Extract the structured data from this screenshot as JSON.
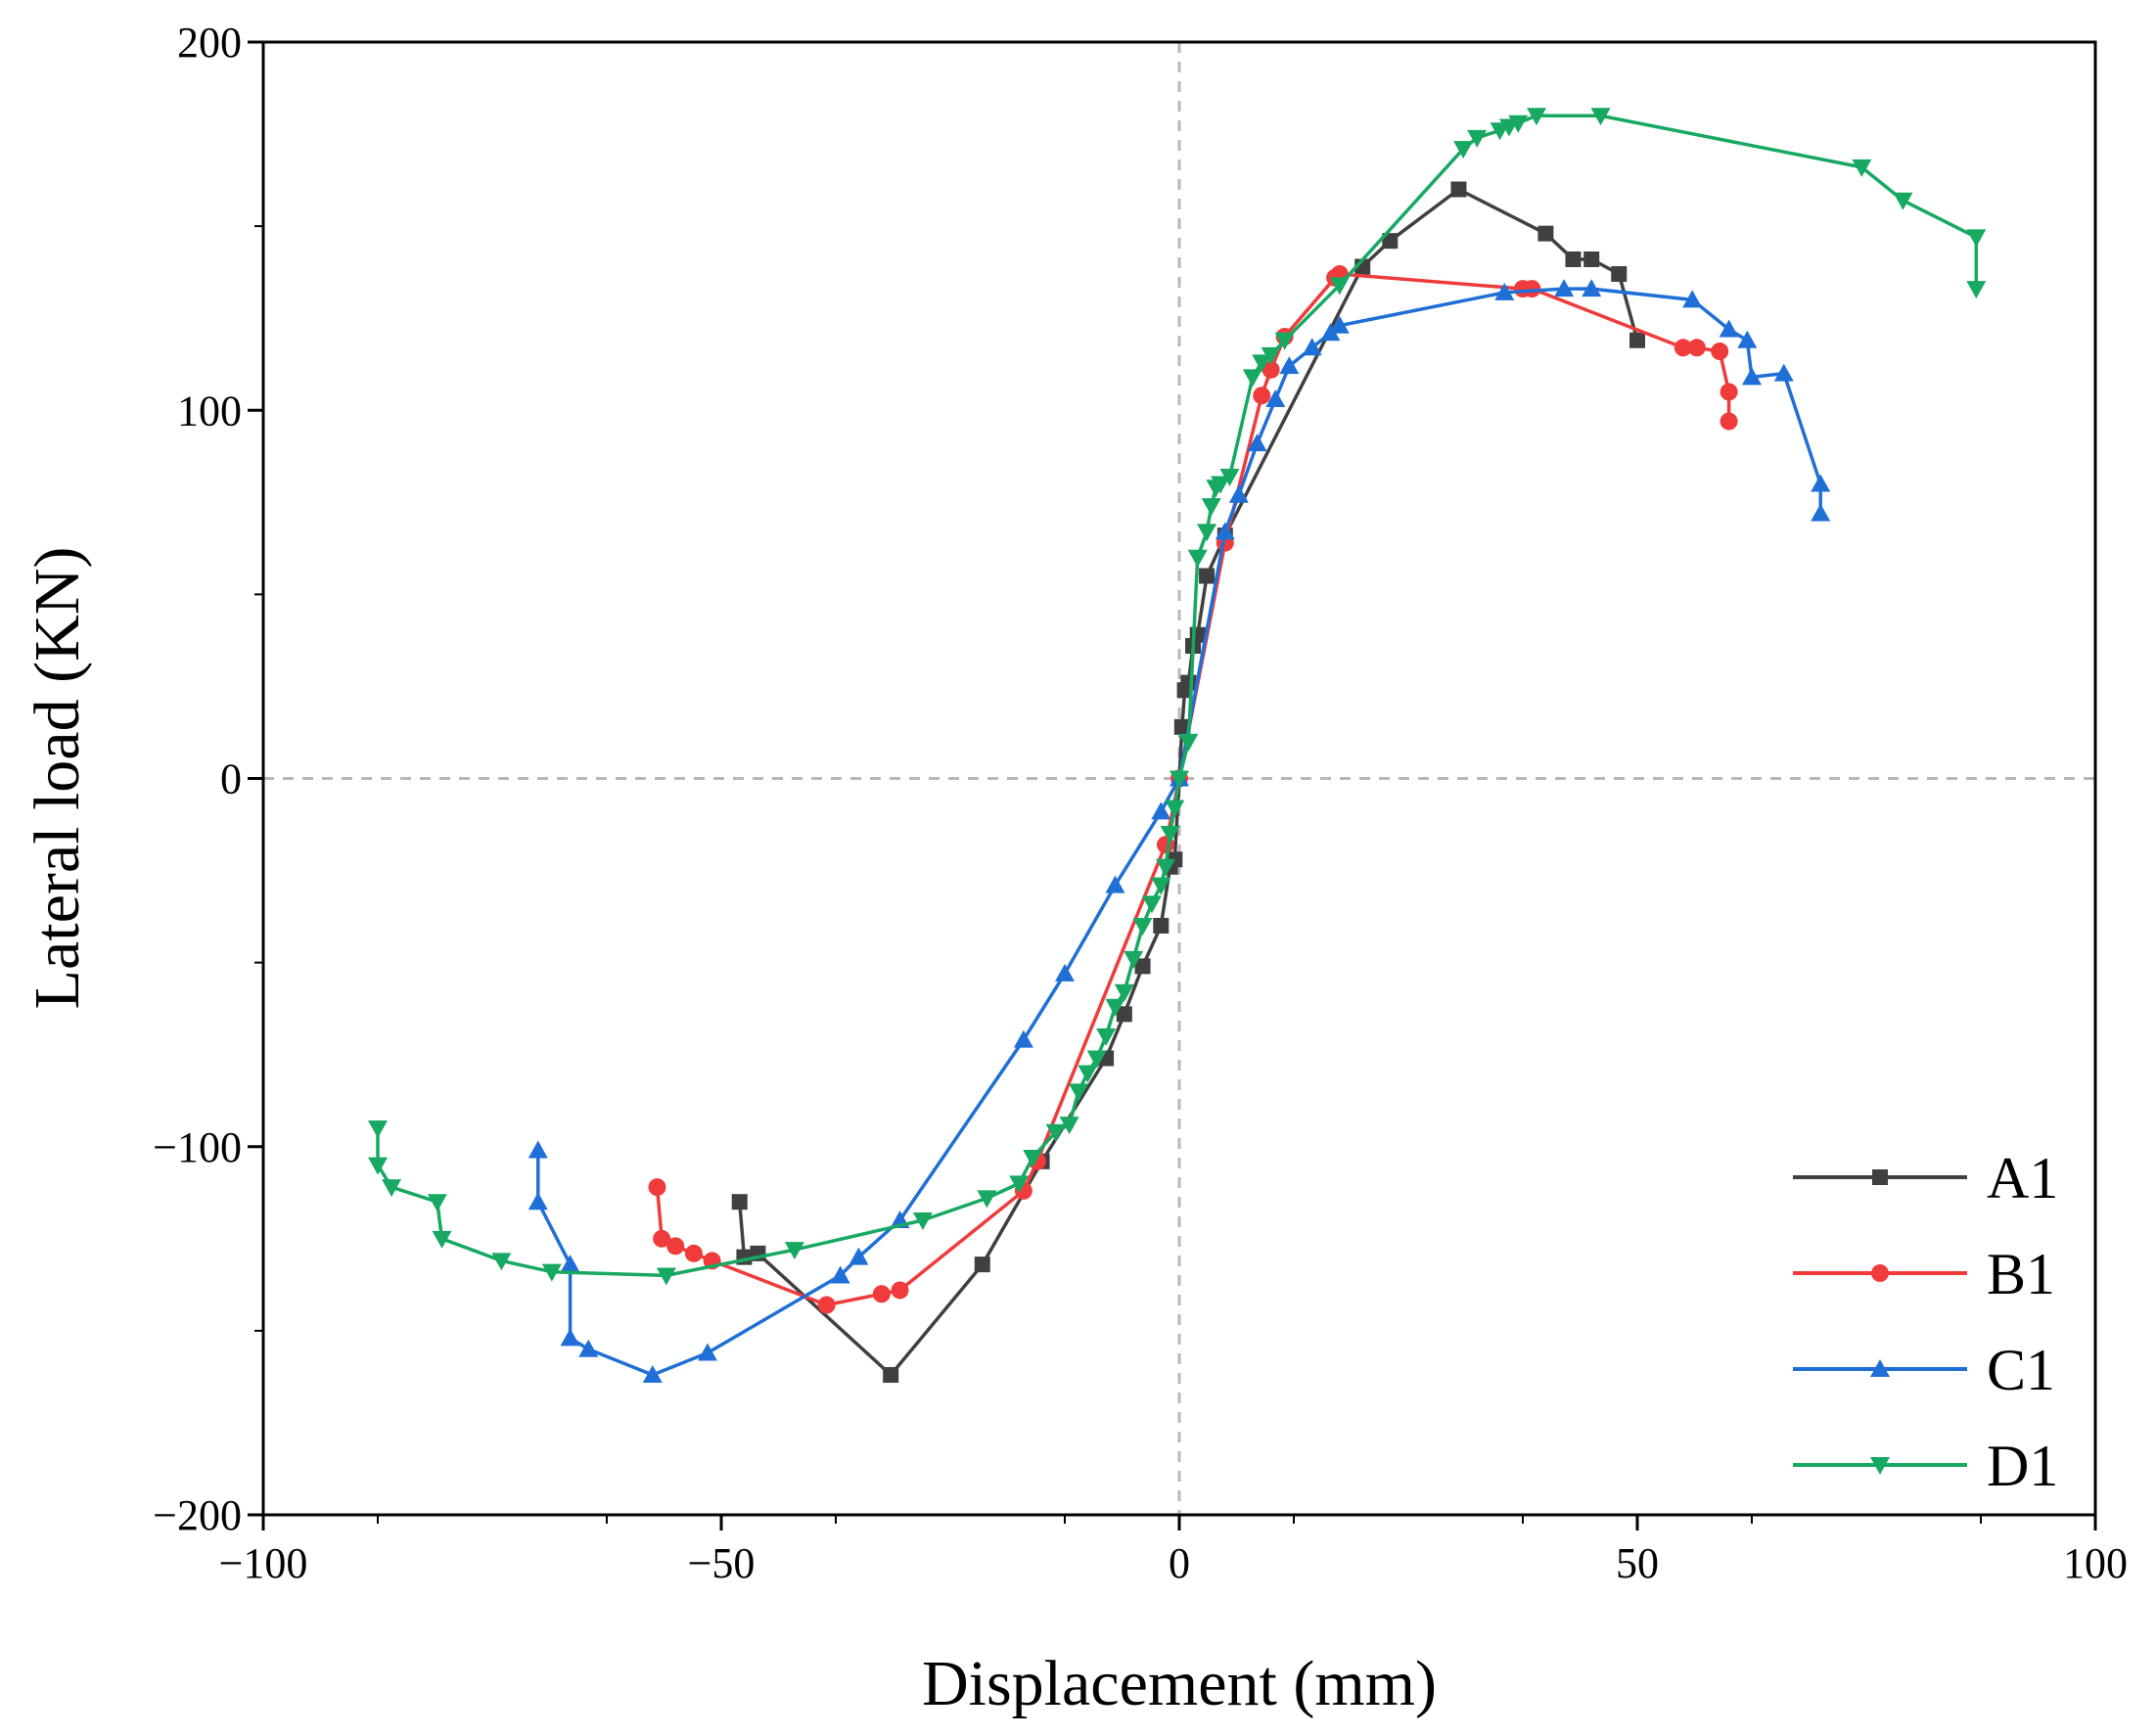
{
  "chart_data": {
    "type": "line",
    "title": "",
    "xlabel": "Displacement (mm)",
    "ylabel": "Lateral load (KN)",
    "xlim": [
      -100,
      100
    ],
    "ylim": [
      -200,
      200
    ],
    "xticks": [
      -100,
      -50,
      0,
      50,
      100
    ],
    "yticks": [
      -200,
      -100,
      0,
      100,
      200
    ],
    "xtick_labels": [
      "−100",
      "−50",
      "0",
      "50",
      "100"
    ],
    "ytick_labels": [
      "−200",
      "−100",
      "0",
      "100",
      "200"
    ],
    "grid": false,
    "reference_lines": [
      {
        "axis": "x",
        "value": 0
      },
      {
        "axis": "y",
        "value": 0
      }
    ],
    "legend_position": "bottom-right",
    "series": [
      {
        "name": "A1",
        "color": "#404040",
        "marker": "square",
        "x": [
          -48,
          -47.5,
          -46,
          -31.5,
          -21.5,
          -15,
          -8,
          -6,
          -4,
          -2,
          -1,
          -0.5,
          0,
          0.3,
          0.6,
          1,
          1.5,
          2,
          3,
          5,
          20,
          23,
          30.5,
          40,
          43,
          45,
          48,
          50
        ],
        "y": [
          -115,
          -130,
          -129,
          -162,
          -132,
          -104,
          -76,
          -64,
          -51,
          -40,
          -24,
          -22,
          0,
          14,
          24,
          26,
          36,
          39,
          55,
          66,
          139,
          146,
          160,
          148,
          141,
          141,
          137,
          119
        ]
      },
      {
        "name": "B1",
        "color": "#ef3b3b",
        "marker": "circle",
        "x": [
          -57,
          -56.5,
          -55,
          -53,
          -51,
          -38.5,
          -32.5,
          -30.5,
          -17,
          -15.5,
          -1.5,
          0,
          5,
          9,
          10,
          11.5,
          17,
          17.5,
          37.5,
          38.5,
          55,
          56.5,
          59,
          60,
          60
        ],
        "y": [
          -111,
          -125,
          -127,
          -129,
          -131,
          -143,
          -140,
          -139,
          -112,
          -104,
          -18,
          0,
          64,
          104,
          111,
          120,
          136,
          137,
          133,
          133,
          117,
          117,
          116,
          105,
          97
        ]
      },
      {
        "name": "C1",
        "color": "#1f6fd6",
        "marker": "triangle-up",
        "x": [
          -70,
          -70,
          -66.5,
          -66.5,
          -64.5,
          -57.5,
          -51.5,
          -37,
          -35,
          -30.5,
          -17,
          -12.5,
          -7,
          -2,
          0,
          5,
          6.5,
          8.5,
          10.5,
          12,
          14.5,
          16.5,
          17.5,
          35.5,
          42,
          45,
          56,
          60,
          62,
          62.5,
          66,
          70,
          70
        ],
        "y": [
          -101,
          -115,
          -132,
          -152,
          -155,
          -162,
          -156,
          -135,
          -130,
          -120,
          -71,
          -53,
          -29,
          -9,
          0,
          67,
          77,
          91,
          103,
          112,
          117,
          121,
          123,
          132,
          133,
          133,
          130,
          122,
          119,
          109,
          110,
          80,
          72
        ]
      },
      {
        "name": "D1",
        "color": "#17a862",
        "marker": "triangle-down",
        "x": [
          -87.5,
          -87.5,
          -86,
          -81,
          -80.5,
          -74,
          -68.5,
          -56,
          -42,
          -28,
          -21,
          -17.5,
          -16,
          -13.5,
          -12,
          -11,
          -10,
          -9,
          -8,
          -7,
          -6,
          -5,
          -4,
          -3,
          -2,
          -1.5,
          -1,
          -0.5,
          0,
          1,
          2,
          3,
          3.5,
          4,
          4.5,
          5.5,
          8,
          9,
          10,
          11.5,
          17.5,
          31,
          32.5,
          35,
          36,
          37,
          39,
          46,
          74.5,
          79,
          87,
          87
        ],
        "y": [
          -95,
          -105,
          -111,
          -115,
          -125,
          -131,
          -134,
          -135,
          -128,
          -120,
          -114,
          -110,
          -103,
          -96,
          -94,
          -85,
          -80,
          -76,
          -70,
          -62,
          -58,
          -49,
          -40,
          -34,
          -29,
          -24,
          -15,
          -8,
          0,
          10,
          60,
          67,
          74,
          79,
          80,
          82,
          109,
          113,
          115,
          119,
          134,
          171,
          174,
          176,
          177,
          178,
          180,
          180,
          166,
          157,
          147,
          133
        ]
      }
    ]
  }
}
